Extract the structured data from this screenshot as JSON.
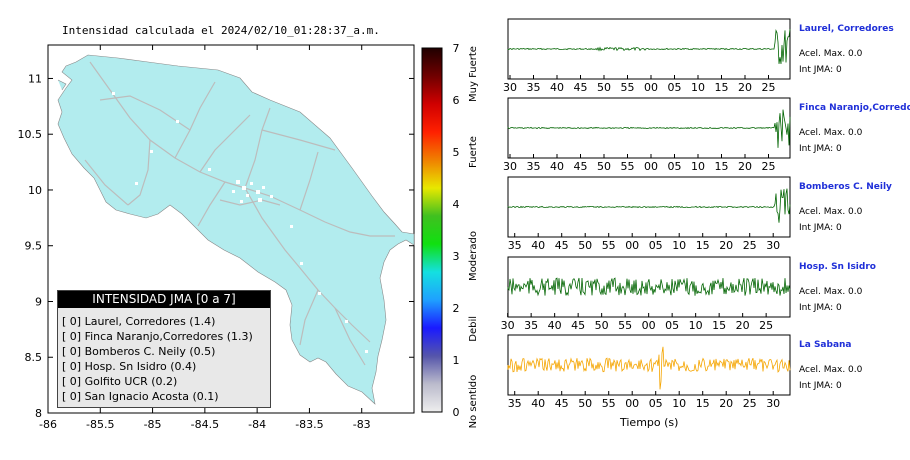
{
  "header": {
    "title": "Intensidad calculada el 2024/02/10_01:28:37_a.m."
  },
  "chart_data": [
    {
      "type": "heatmap",
      "title": "Intensidad calculada el 2024/02/10_01:28:37_a.m.",
      "x_ticks": [
        "-86",
        "-85.5",
        "-85",
        "-84.5",
        "-84",
        "-83.5",
        "-83"
      ],
      "y_ticks": [
        "11",
        "10.5",
        "10",
        "9.5",
        "9",
        "8.5",
        "8"
      ],
      "xlim": [
        -86,
        -82.5
      ],
      "ylim": [
        8,
        11.3
      ],
      "grid": false,
      "colorbar": {
        "ticks": [
          "7",
          "6",
          "5",
          "4",
          "3",
          "2",
          "1",
          "0"
        ],
        "labels": [
          "Muy Fuerte",
          "Fuerte",
          "Moderado",
          "Debil",
          "No sentido"
        ],
        "range": [
          0,
          7
        ],
        "colors": [
          "#eeeeee",
          "#bbbbcc",
          "#5555aa",
          "#1a1aff",
          "#1fa0ff",
          "#14e0e0",
          "#10e010",
          "#40c020",
          "#e8e800",
          "#f08000",
          "#ff2000",
          "#d00000",
          "#700000",
          "#200000"
        ]
      },
      "intensity_legend": {
        "title": "INTENSIDAD JMA [0 a 7]",
        "entries": [
          {
            "value": "[ 0]",
            "station": "Laurel, Corredores",
            "intensity": "(1.4)"
          },
          {
            "value": "[ 0]",
            "station": "Finca Naranjo,Corredores",
            "intensity": "(1.3)"
          },
          {
            "value": "[ 0]",
            "station": "Bomberos C. Neily",
            "intensity": "(0.5)"
          },
          {
            "value": "[ 0]",
            "station": "Hosp. Sn Isidro",
            "intensity": "(0.4)"
          },
          {
            "value": "[ 0]",
            "station": "Golfito UCR",
            "intensity": "(0.2)"
          },
          {
            "value": "[ 0]",
            "station": "San Ignacio Acosta",
            "intensity": "(0.1)"
          }
        ]
      },
      "colors": {
        "land": "#b2ecee",
        "roads": "#bcbcbc",
        "stations": "#ffffff"
      }
    },
    {
      "type": "line",
      "xlabel": "Tiempo (s)",
      "traces": [
        {
          "station": "Laurel, Corredores",
          "acc": "Acel. Max. 0.0",
          "int": "Int JMA: 0",
          "ticks": [
            "30",
            "35",
            "40",
            "45",
            "50",
            "55",
            "00",
            "05",
            "10",
            "15",
            "20",
            "25"
          ],
          "tick_start": 30,
          "color": "#006400"
        },
        {
          "station": "Finca Naranjo,Corredores",
          "acc": "Acel. Max. 0.0",
          "int": "Int JMA: 0",
          "ticks": [
            "30",
            "35",
            "40",
            "45",
            "50",
            "55",
            "00",
            "05",
            "10",
            "15",
            "20",
            "25"
          ],
          "tick_start": 30,
          "color": "#006400"
        },
        {
          "station": "Bomberos C. Neily",
          "acc": "Acel. Max. 0.0",
          "int": "Int JMA: 0",
          "ticks": [
            "35",
            "40",
            "45",
            "50",
            "55",
            "00",
            "05",
            "10",
            "15",
            "20",
            "25",
            "30"
          ],
          "tick_start": 32,
          "color": "#006400"
        },
        {
          "station": "Hosp. Sn Isidro",
          "acc": "Acel. Max. 0.0",
          "int": "Int JMA: 0",
          "ticks": [
            "30",
            "35",
            "40",
            "45",
            "50",
            "55",
            "00",
            "05",
            "10",
            "15",
            "20",
            "25"
          ],
          "tick_start": 29,
          "color": "#006400"
        },
        {
          "station": "La Sabana",
          "acc": "Acel. Max. 0.0",
          "int": "Int JMA: 0",
          "ticks": [
            "35",
            "40",
            "45",
            "50",
            "55",
            "00",
            "05",
            "10",
            "15",
            "20",
            "25",
            "30"
          ],
          "tick_start": 32,
          "color": "#f5a500"
        }
      ]
    }
  ]
}
